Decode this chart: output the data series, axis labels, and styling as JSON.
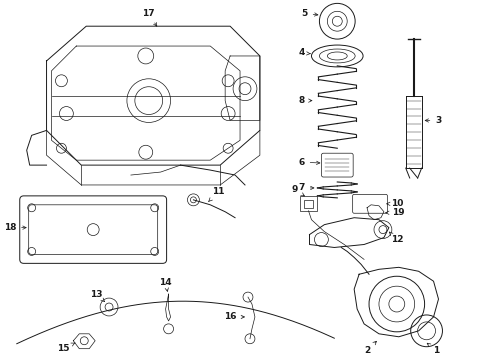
{
  "bg": "#ffffff",
  "lc": "#1a1a1a",
  "lw_main": 0.7,
  "lw_thin": 0.5,
  "fs": 6.5,
  "fw": "bold",
  "label_color": "#000000"
}
